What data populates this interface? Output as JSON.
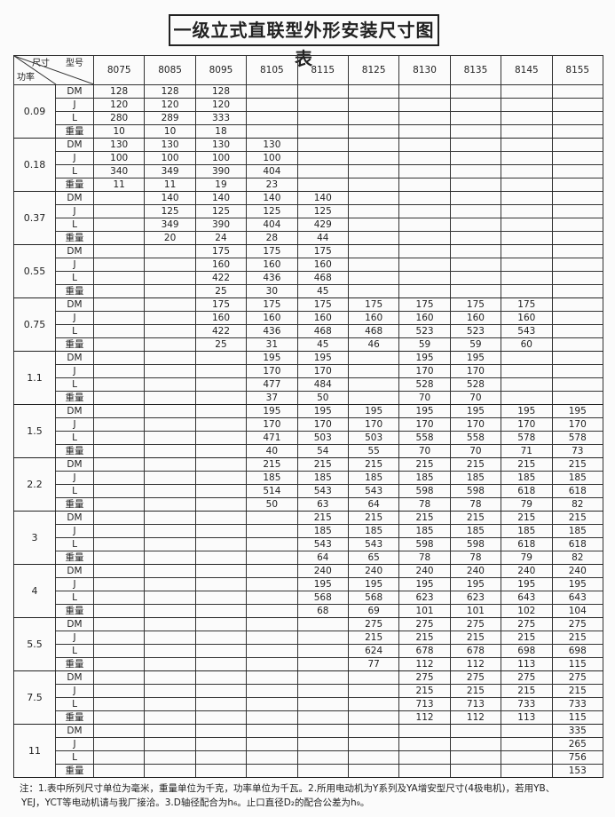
{
  "title": "一级立式直联型外形安装尺寸图表",
  "header": {
    "size_label": "尺寸",
    "model_label": "型号",
    "power_label": "功率",
    "models": [
      "8075",
      "8085",
      "8095",
      "8105",
      "8115",
      "8125",
      "8130",
      "8135",
      "8145",
      "8155"
    ]
  },
  "groups": [
    {
      "power": "0.09",
      "rows": [
        {
          "label": "DM",
          "values": [
            "128",
            "128",
            "128",
            null,
            null,
            null,
            null,
            null,
            null,
            null
          ]
        },
        {
          "label": "J",
          "values": [
            "120",
            "120",
            "120",
            null,
            null,
            null,
            null,
            null,
            null,
            null
          ]
        },
        {
          "label": "L",
          "values": [
            "280",
            "289",
            "333",
            null,
            null,
            null,
            null,
            null,
            null,
            null
          ]
        },
        {
          "label": "重量",
          "values": [
            "10",
            "10",
            "18",
            null,
            null,
            null,
            null,
            null,
            null,
            null
          ]
        }
      ]
    },
    {
      "power": "0.18",
      "rows": [
        {
          "label": "DM",
          "values": [
            "130",
            "130",
            "130",
            "130",
            null,
            null,
            null,
            null,
            null,
            null
          ]
        },
        {
          "label": "J",
          "values": [
            "100",
            "100",
            "100",
            "100",
            null,
            null,
            null,
            null,
            null,
            null
          ]
        },
        {
          "label": "L",
          "values": [
            "340",
            "349",
            "390",
            "404",
            null,
            null,
            null,
            null,
            null,
            null
          ]
        },
        {
          "label": "重量",
          "values": [
            "11",
            "11",
            "19",
            "23",
            null,
            null,
            null,
            null,
            null,
            null
          ]
        }
      ]
    },
    {
      "power": "0.37",
      "rows": [
        {
          "label": "DM",
          "values": [
            null,
            "140",
            "140",
            "140",
            "140",
            null,
            null,
            null,
            null,
            null
          ]
        },
        {
          "label": "J",
          "values": [
            null,
            "125",
            "125",
            "125",
            "125",
            null,
            null,
            null,
            null,
            null
          ]
        },
        {
          "label": "L",
          "values": [
            null,
            "349",
            "390",
            "404",
            "429",
            null,
            null,
            null,
            null,
            null
          ]
        },
        {
          "label": "重量",
          "values": [
            null,
            "20",
            "24",
            "28",
            "44",
            null,
            null,
            null,
            null,
            null
          ]
        }
      ]
    },
    {
      "power": "0.55",
      "rows": [
        {
          "label": "DM",
          "values": [
            null,
            null,
            "175",
            "175",
            "175",
            null,
            null,
            null,
            null,
            null
          ]
        },
        {
          "label": "J",
          "values": [
            null,
            null,
            "160",
            "160",
            "160",
            null,
            null,
            null,
            null,
            null
          ]
        },
        {
          "label": "L",
          "values": [
            null,
            null,
            "422",
            "436",
            "468",
            null,
            null,
            null,
            null,
            null
          ]
        },
        {
          "label": "重量",
          "values": [
            null,
            null,
            "25",
            "30",
            "45",
            null,
            null,
            null,
            null,
            null
          ]
        }
      ]
    },
    {
      "power": "0.75",
      "rows": [
        {
          "label": "DM",
          "values": [
            null,
            null,
            "175",
            "175",
            "175",
            "175",
            "175",
            "175",
            "175",
            null
          ]
        },
        {
          "label": "J",
          "values": [
            null,
            null,
            "160",
            "160",
            "160",
            "160",
            "160",
            "160",
            "160",
            null
          ]
        },
        {
          "label": "L",
          "values": [
            null,
            null,
            "422",
            "436",
            "468",
            "468",
            "523",
            "523",
            "543",
            null
          ]
        },
        {
          "label": "重量",
          "values": [
            null,
            null,
            "25",
            "31",
            "45",
            "46",
            "59",
            "59",
            "60",
            null
          ]
        }
      ]
    },
    {
      "power": "1.1",
      "rows": [
        {
          "label": "DM",
          "values": [
            null,
            null,
            null,
            "195",
            "195",
            null,
            "195",
            "195",
            null,
            null
          ]
        },
        {
          "label": "J",
          "values": [
            null,
            null,
            null,
            "170",
            "170",
            null,
            "170",
            "170",
            null,
            null
          ]
        },
        {
          "label": "L",
          "values": [
            null,
            null,
            null,
            "477",
            "484",
            null,
            "528",
            "528",
            null,
            null
          ]
        },
        {
          "label": "重量",
          "values": [
            null,
            null,
            null,
            "37",
            "50",
            null,
            "70",
            "70",
            null,
            null
          ]
        }
      ]
    },
    {
      "power": "1.5",
      "rows": [
        {
          "label": "DM",
          "values": [
            null,
            null,
            null,
            "195",
            "195",
            "195",
            "195",
            "195",
            "195",
            "195"
          ]
        },
        {
          "label": "J",
          "values": [
            null,
            null,
            null,
            "170",
            "170",
            "170",
            "170",
            "170",
            "170",
            "170"
          ]
        },
        {
          "label": "L",
          "values": [
            null,
            null,
            null,
            "471",
            "503",
            "503",
            "558",
            "558",
            "578",
            "578"
          ]
        },
        {
          "label": "重量",
          "values": [
            null,
            null,
            null,
            "40",
            "54",
            "55",
            "70",
            "70",
            "71",
            "73"
          ]
        }
      ]
    },
    {
      "power": "2.2",
      "rows": [
        {
          "label": "DM",
          "values": [
            null,
            null,
            null,
            "215",
            "215",
            "215",
            "215",
            "215",
            "215",
            "215"
          ]
        },
        {
          "label": "J",
          "values": [
            null,
            null,
            null,
            "185",
            "185",
            "185",
            "185",
            "185",
            "185",
            "185"
          ]
        },
        {
          "label": "L",
          "values": [
            null,
            null,
            null,
            "514",
            "543",
            "543",
            "598",
            "598",
            "618",
            "618"
          ]
        },
        {
          "label": "重量",
          "values": [
            null,
            null,
            null,
            "50",
            "63",
            "64",
            "78",
            "78",
            "79",
            "82"
          ]
        }
      ]
    },
    {
      "power": "3",
      "rows": [
        {
          "label": "DM",
          "values": [
            null,
            null,
            null,
            null,
            "215",
            "215",
            "215",
            "215",
            "215",
            "215"
          ]
        },
        {
          "label": "J",
          "values": [
            null,
            null,
            null,
            null,
            "185",
            "185",
            "185",
            "185",
            "185",
            "185"
          ]
        },
        {
          "label": "L",
          "values": [
            null,
            null,
            null,
            null,
            "543",
            "543",
            "598",
            "598",
            "618",
            "618"
          ]
        },
        {
          "label": "重量",
          "values": [
            null,
            null,
            null,
            null,
            "64",
            "65",
            "78",
            "78",
            "79",
            "82"
          ]
        }
      ]
    },
    {
      "power": "4",
      "rows": [
        {
          "label": "DM",
          "values": [
            null,
            null,
            null,
            null,
            "240",
            "240",
            "240",
            "240",
            "240",
            "240"
          ]
        },
        {
          "label": "J",
          "values": [
            null,
            null,
            null,
            null,
            "195",
            "195",
            "195",
            "195",
            "195",
            "195"
          ]
        },
        {
          "label": "L",
          "values": [
            null,
            null,
            null,
            null,
            "568",
            "568",
            "623",
            "623",
            "643",
            "643"
          ]
        },
        {
          "label": "重量",
          "values": [
            null,
            null,
            null,
            null,
            "68",
            "69",
            "101",
            "101",
            "102",
            "104"
          ]
        }
      ]
    },
    {
      "power": "5.5",
      "rows": [
        {
          "label": "DM",
          "values": [
            null,
            null,
            null,
            null,
            null,
            "275",
            "275",
            "275",
            "275",
            "275"
          ]
        },
        {
          "label": "J",
          "values": [
            null,
            null,
            null,
            null,
            null,
            "215",
            "215",
            "215",
            "215",
            "215"
          ]
        },
        {
          "label": "L",
          "values": [
            null,
            null,
            null,
            null,
            null,
            "624",
            "678",
            "678",
            "698",
            "698"
          ]
        },
        {
          "label": "重量",
          "values": [
            null,
            null,
            null,
            null,
            null,
            "77",
            "112",
            "112",
            "113",
            "115"
          ]
        }
      ]
    },
    {
      "power": "7.5",
      "rows": [
        {
          "label": "DM",
          "values": [
            null,
            null,
            null,
            null,
            null,
            null,
            "275",
            "275",
            "275",
            "275"
          ]
        },
        {
          "label": "J",
          "values": [
            null,
            null,
            null,
            null,
            null,
            null,
            "215",
            "215",
            "215",
            "215"
          ]
        },
        {
          "label": "L",
          "values": [
            null,
            null,
            null,
            null,
            null,
            null,
            "713",
            "713",
            "733",
            "733"
          ]
        },
        {
          "label": "重量",
          "values": [
            null,
            null,
            null,
            null,
            null,
            null,
            "112",
            "112",
            "113",
            "115"
          ]
        }
      ]
    },
    {
      "power": "11",
      "rows": [
        {
          "label": "DM",
          "values": [
            null,
            null,
            null,
            null,
            null,
            null,
            null,
            null,
            null,
            "335"
          ]
        },
        {
          "label": "J",
          "values": [
            null,
            null,
            null,
            null,
            null,
            null,
            null,
            null,
            null,
            "265"
          ]
        },
        {
          "label": "L",
          "values": [
            null,
            null,
            null,
            null,
            null,
            null,
            null,
            null,
            null,
            "756"
          ]
        },
        {
          "label": "重量",
          "values": [
            null,
            null,
            null,
            null,
            null,
            null,
            null,
            null,
            null,
            "153"
          ]
        }
      ]
    }
  ],
  "notes": [
    "注：1.表中所列尺寸单位为毫米，重量单位为千克，功率单位为千瓦。2.所用电动机为Y系列及YA增安型尺寸(4极电机)，若用YB、",
    "YEJ，YCT等电动机请与我厂接洽。3.D轴径配合为h₆。止口直径D₂的配合公差为h₉。"
  ]
}
